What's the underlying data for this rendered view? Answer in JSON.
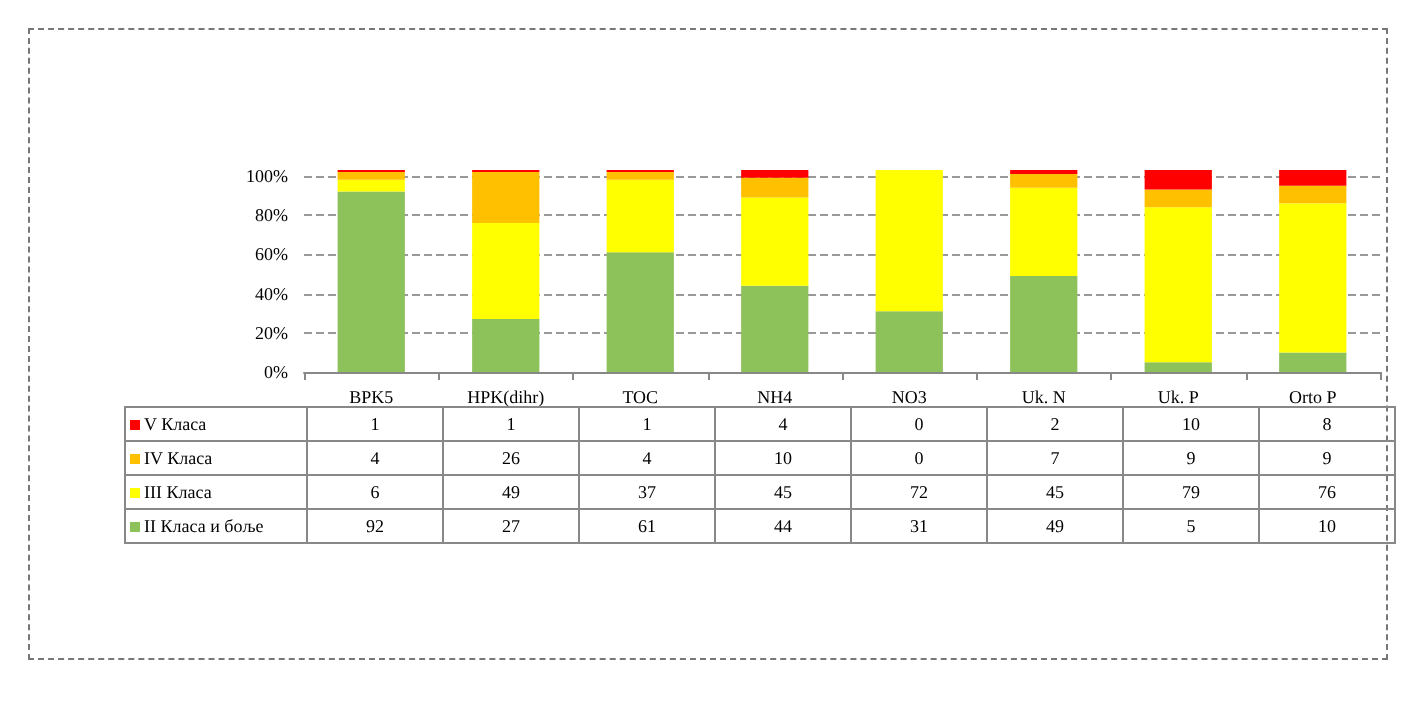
{
  "chart_data": {
    "type": "bar",
    "stacked": true,
    "categories": [
      "BPK5",
      "HPK(dihr)",
      "TOC",
      "NH4",
      "NO3",
      "Uk. N",
      "Uk. P",
      "Orto P"
    ],
    "series": [
      {
        "name": "II Класа и боље",
        "color": "#8dc15a",
        "values": [
          92,
          27,
          61,
          44,
          31,
          49,
          5,
          10
        ]
      },
      {
        "name": "III Класа",
        "color": "#ffff00",
        "values": [
          6,
          49,
          37,
          45,
          72,
          45,
          79,
          76
        ]
      },
      {
        "name": "IV Класа",
        "color": "#ffc000",
        "values": [
          4,
          26,
          4,
          10,
          0,
          7,
          9,
          9
        ]
      },
      {
        "name": "V Класа",
        "color": "#ff0000",
        "values": [
          1,
          1,
          1,
          4,
          0,
          2,
          10,
          8
        ]
      }
    ],
    "ylim": [
      0,
      103
    ],
    "yticks": [
      {
        "value": 0,
        "label": "0%"
      },
      {
        "value": 20,
        "label": "20%"
      },
      {
        "value": 40,
        "label": "40%"
      },
      {
        "value": 60,
        "label": "60%"
      },
      {
        "value": 80,
        "label": "80%"
      },
      {
        "value": 100,
        "label": "100%"
      }
    ],
    "data_labels": true,
    "grid": "y",
    "legend": "bottom left"
  }
}
